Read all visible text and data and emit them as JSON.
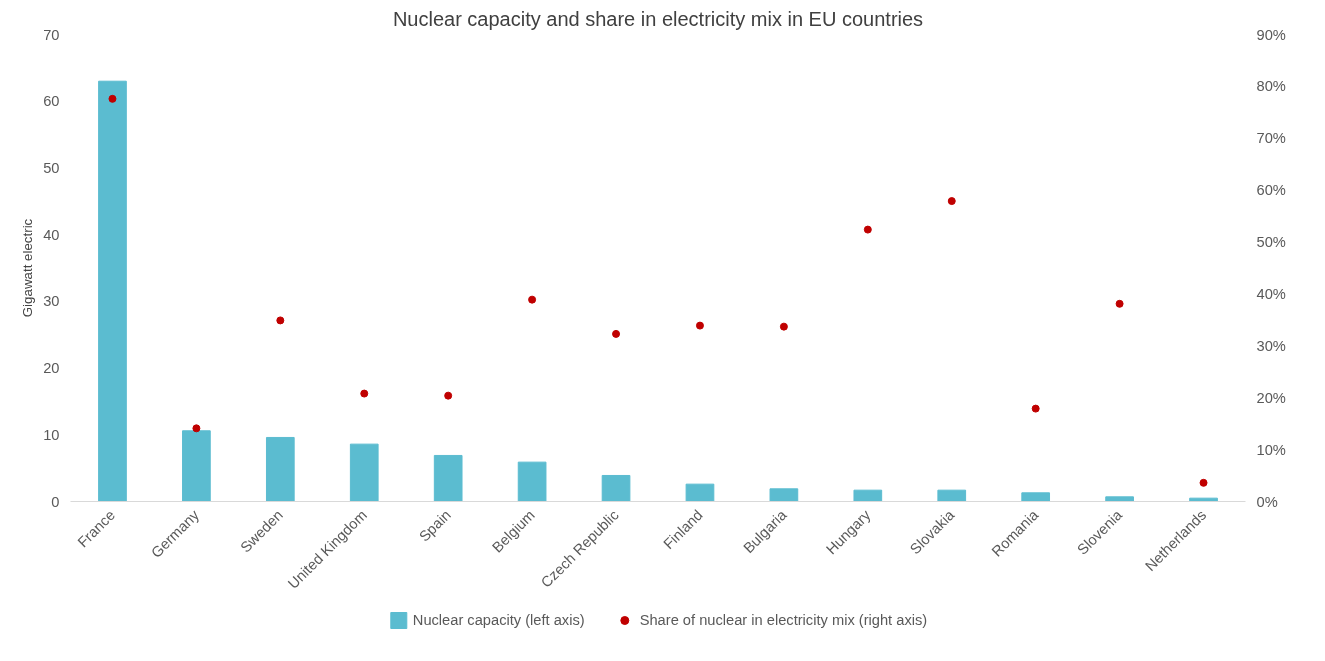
{
  "chart_data": {
    "type": "bar",
    "title": "Nuclear capacity and share in electricity mix in EU countries",
    "ylabel": "Gigawatt electric",
    "categories": [
      "France",
      "Germany",
      "Sweden",
      "United Kingdom",
      "Spain",
      "Belgium",
      "Czech Republic",
      "Finland",
      "Bulgaria",
      "Hungary",
      "Slovakia",
      "Romania",
      "Slovenia",
      "Netherlands"
    ],
    "series": [
      {
        "name": "Nuclear capacity (left axis)",
        "color": "#5bbcd0",
        "values": [
          63,
          10.6,
          9.6,
          8.6,
          6.9,
          5.9,
          3.9,
          2.6,
          1.9,
          1.7,
          1.7,
          1.3,
          0.7,
          0.5
        ]
      },
      {
        "name": "Share of nuclear in electricity mix (right axis)",
        "type": "scatter",
        "axis": "y2",
        "color": "#c00000",
        "values": [
          77.6,
          14.1,
          34.9,
          20.8,
          20.4,
          38.9,
          32.3,
          33.9,
          33.7,
          52.4,
          57.9,
          17.9,
          38.1,
          3.6
        ]
      }
    ],
    "ylim": [
      0,
      70
    ],
    "yticks": [
      0,
      10,
      20,
      30,
      40,
      50,
      60,
      70
    ],
    "y2lim": [
      0,
      90
    ],
    "y2ticks": [
      {
        "value": 0,
        "label": "0%"
      },
      {
        "value": 10,
        "label": "10%"
      },
      {
        "value": 20,
        "label": "20%"
      },
      {
        "value": 30,
        "label": "30%"
      },
      {
        "value": 40,
        "label": "40%"
      },
      {
        "value": 50,
        "label": "50%"
      },
      {
        "value": 60,
        "label": "60%"
      },
      {
        "value": 70,
        "label": "70%"
      },
      {
        "value": 80,
        "label": "80%"
      },
      {
        "value": 90,
        "label": "90%"
      }
    ],
    "marker": "circle",
    "grid": false,
    "legend": "bottom"
  }
}
